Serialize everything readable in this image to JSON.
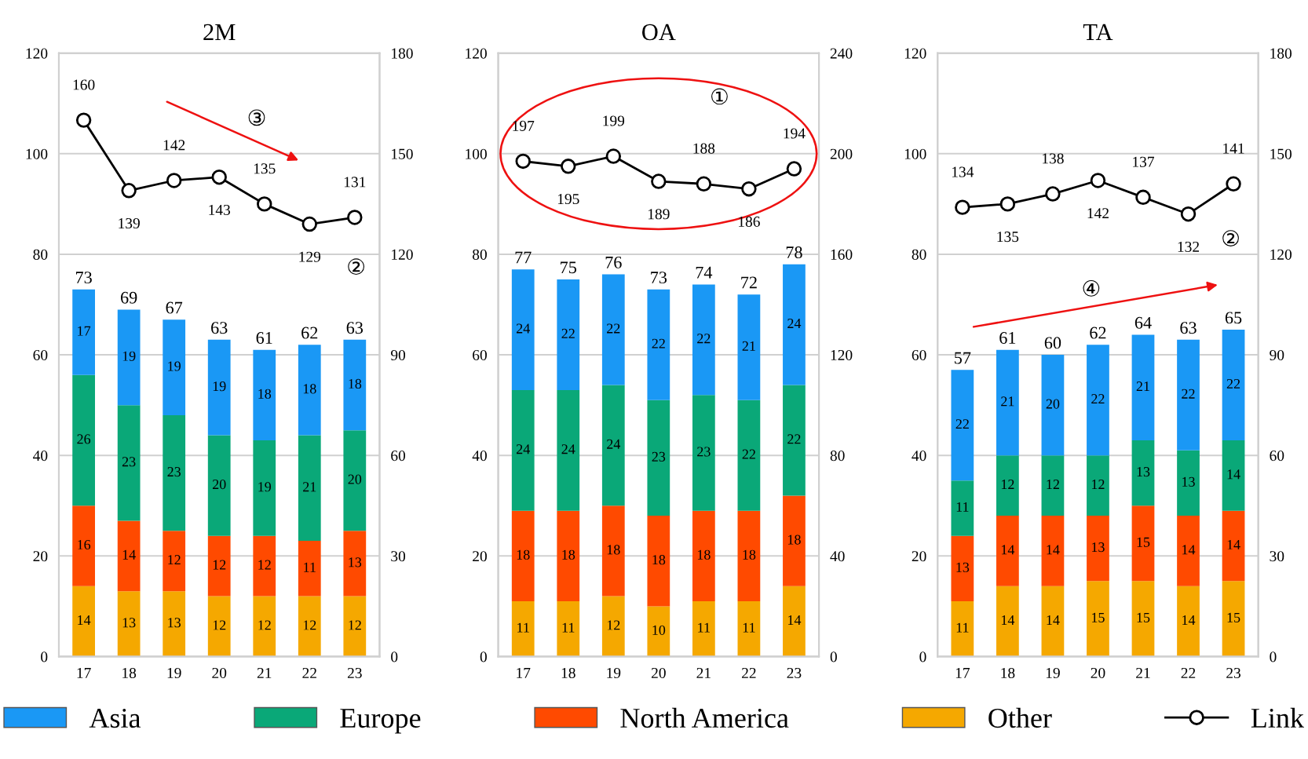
{
  "chart_data": [
    {
      "type": "bar",
      "title": "2M",
      "categories": [
        "17",
        "18",
        "19",
        "20",
        "21",
        "22",
        "23"
      ],
      "stacked": true,
      "data_labels": true,
      "grid": "y",
      "legend": "bottom",
      "marker": "circle",
      "ylim": [
        0,
        120
      ],
      "yticks": [
        0,
        20,
        40,
        60,
        80,
        100,
        120
      ],
      "y2lim": [
        0,
        180
      ],
      "y2ticks": [
        0,
        30,
        60,
        90,
        120,
        150,
        180
      ],
      "series": [
        {
          "name": "Other",
          "color": "#f5a800",
          "values": [
            14,
            13,
            13,
            12,
            12,
            12,
            12
          ]
        },
        {
          "name": "North America",
          "color": "#ff4a00",
          "values": [
            16,
            14,
            12,
            12,
            12,
            11,
            13
          ]
        },
        {
          "name": "Europe",
          "color": "#0aa878",
          "values": [
            26,
            23,
            23,
            20,
            19,
            21,
            20
          ]
        },
        {
          "name": "Asia",
          "color": "#1a98f5",
          "values": [
            17,
            19,
            19,
            19,
            18,
            18,
            18
          ]
        },
        {
          "name": "Link",
          "type": "line",
          "axis": "y2",
          "color": "#000000",
          "values": [
            160,
            139,
            142,
            143,
            135,
            129,
            131
          ]
        }
      ],
      "totals": [
        "73",
        "69",
        "67",
        "63",
        "61",
        "62",
        "63"
      ],
      "annotations": [
        "③",
        "②"
      ]
    },
    {
      "type": "bar",
      "title": "OA",
      "categories": [
        "17",
        "18",
        "19",
        "20",
        "21",
        "22",
        "23"
      ],
      "stacked": true,
      "data_labels": true,
      "grid": "y",
      "marker": "circle",
      "ylim": [
        0,
        120
      ],
      "yticks": [
        0,
        20,
        40,
        60,
        80,
        100,
        120
      ],
      "y2lim": [
        0,
        240
      ],
      "y2ticks": [
        0,
        40,
        80,
        120,
        160,
        200,
        240
      ],
      "series": [
        {
          "name": "Other",
          "color": "#f5a800",
          "values": [
            11,
            11,
            12,
            10,
            11,
            11,
            14
          ]
        },
        {
          "name": "North America",
          "color": "#ff4a00",
          "values": [
            18,
            18,
            18,
            18,
            18,
            18,
            18
          ]
        },
        {
          "name": "Europe",
          "color": "#0aa878",
          "values": [
            24,
            24,
            24,
            23,
            23,
            22,
            22
          ]
        },
        {
          "name": "Asia",
          "color": "#1a98f5",
          "values": [
            24,
            22,
            22,
            22,
            22,
            21,
            24
          ]
        },
        {
          "name": "Link",
          "type": "line",
          "axis": "y2",
          "color": "#000000",
          "values": [
            197,
            195,
            199,
            189,
            188,
            186,
            194
          ]
        }
      ],
      "totals": [
        "77",
        "75",
        "76",
        "73",
        "74",
        "72",
        "78"
      ],
      "annotations": [
        "①"
      ]
    },
    {
      "type": "bar",
      "title": "TA",
      "categories": [
        "17",
        "18",
        "19",
        "20",
        "21",
        "22",
        "23"
      ],
      "stacked": true,
      "data_labels": true,
      "grid": "y",
      "marker": "circle",
      "ylim": [
        0,
        120
      ],
      "yticks": [
        0,
        20,
        40,
        60,
        80,
        100,
        120
      ],
      "y2lim": [
        0,
        180
      ],
      "y2ticks": [
        0,
        30,
        60,
        90,
        120,
        150,
        180
      ],
      "series": [
        {
          "name": "Other",
          "color": "#f5a800",
          "values": [
            11,
            14,
            14,
            15,
            15,
            14,
            15
          ]
        },
        {
          "name": "North America",
          "color": "#ff4a00",
          "values": [
            13,
            14,
            14,
            13,
            15,
            14,
            14
          ]
        },
        {
          "name": "Europe",
          "color": "#0aa878",
          "values": [
            11,
            12,
            12,
            12,
            13,
            13,
            14
          ]
        },
        {
          "name": "Asia",
          "color": "#1a98f5",
          "values": [
            22,
            21,
            20,
            22,
            21,
            22,
            22
          ]
        },
        {
          "name": "Link",
          "type": "line",
          "axis": "y2",
          "color": "#000000",
          "values": [
            134,
            135,
            138,
            142,
            137,
            132,
            141
          ]
        }
      ],
      "totals": [
        "57",
        "61",
        "60",
        "62",
        "64",
        "63",
        "65"
      ],
      "annotations": [
        "②",
        "④"
      ]
    }
  ]
}
